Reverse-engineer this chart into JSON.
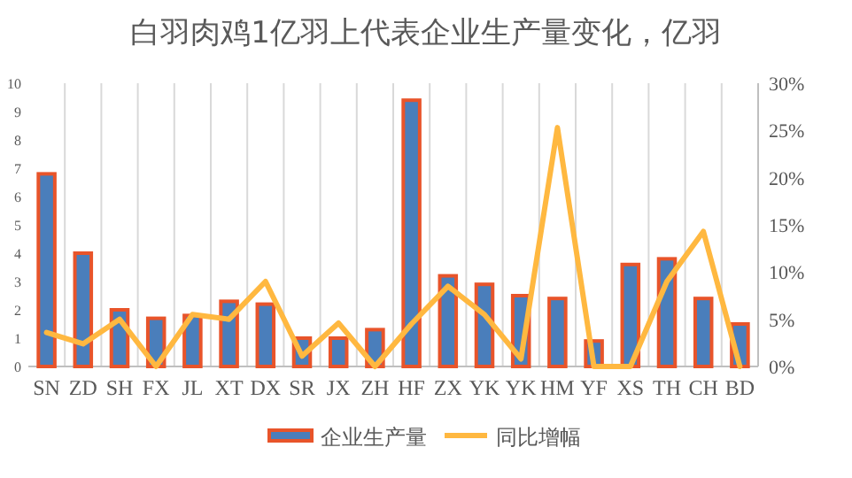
{
  "chart_data": {
    "type": "bar",
    "title": "白羽肉鸡1亿羽上代表企业生产量变化，亿羽",
    "categories": [
      "SN",
      "ZD",
      "SH",
      "FX",
      "JL",
      "XT",
      "DX",
      "SR",
      "JX",
      "ZH",
      "HF",
      "ZX",
      "YK",
      "YK",
      "HM",
      "YF",
      "XS",
      "TH",
      "CH",
      "BD"
    ],
    "series": [
      {
        "name": "企业生产量",
        "color": "#4a7ebb",
        "values": [
          6.8,
          4.0,
          2.0,
          1.7,
          1.8,
          2.3,
          2.2,
          1.0,
          1.0,
          1.3,
          9.4,
          3.2,
          2.9,
          2.5,
          2.4,
          0.9,
          3.6,
          3.8,
          2.4,
          1.5
        ]
      },
      {
        "name": "同比增幅",
        "type": "line",
        "axis": "y2",
        "color": "#ffb840",
        "values": [
          3.6,
          2.4,
          5.0,
          0,
          5.5,
          5.0,
          9.0,
          1.1,
          4.6,
          0,
          4.5,
          8.5,
          5.5,
          0.8,
          25.3,
          0,
          0,
          9.0,
          14.3,
          0
        ]
      }
    ],
    "ylim": [
      0,
      10
    ],
    "yticks": [
      0,
      1,
      2,
      3,
      4,
      5,
      6,
      7,
      8,
      9,
      10
    ],
    "y2lim": [
      0,
      30
    ],
    "y2ticks": [
      {
        "value": 0,
        "label": "0%"
      },
      {
        "value": 5,
        "label": "5%"
      },
      {
        "value": 10,
        "label": "10%"
      },
      {
        "value": 15,
        "label": "15%"
      },
      {
        "value": 20,
        "label": "20%"
      },
      {
        "value": 25,
        "label": "25%"
      },
      {
        "value": 30,
        "label": "30%"
      }
    ],
    "grid": "x",
    "legend": "bottom",
    "marker": "none",
    "line_style": "solid"
  }
}
